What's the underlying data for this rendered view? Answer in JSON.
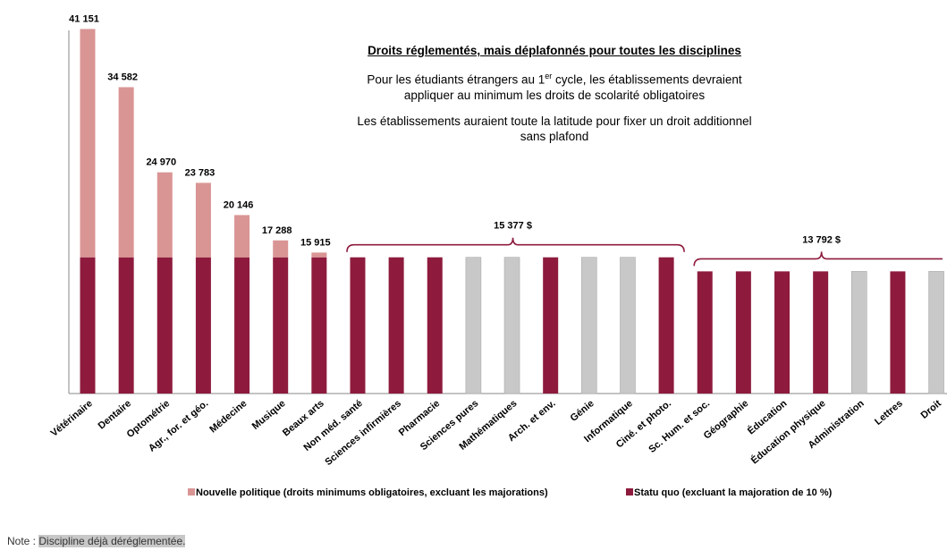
{
  "chart_data": {
    "type": "stacked_bar",
    "title": "Droits réglementés, mais déplafonnés pour toutes les disciplines",
    "text_lines": [
      [
        "Pour les étudiants étrangers au 1",
        "er",
        " cycle, les établissements devraient"
      ],
      [
        "appliquer au minimum les droits de scolarité obligatoires"
      ],
      [
        "Les établissements auraient toute la latitude pour fixer un droit additionnel"
      ],
      [
        "sans plafond"
      ]
    ],
    "categories": [
      "Vétérinaire",
      "Dentaire",
      "Optométrie",
      "Agr., for. et géo.",
      "Médecine",
      "Musique",
      "Beaux arts",
      "Non méd. santé",
      "Sciences infirmières",
      "Pharmacie",
      "Sciences pures",
      "Mathématiques",
      "Arch. et env.",
      "Génie",
      "Informatique",
      "Ciné. et photo.",
      "Sc. Hum. et soc.",
      "Géographie",
      "Éducation",
      "Éducation physique",
      "Administration",
      "Lettres",
      "Droit"
    ],
    "series": [
      {
        "name": "Statu quo (excluant la majoration de 10 %)",
        "color": "#8e1b3d",
        "point_colors": [
          "#8e1b3d",
          "#8e1b3d",
          "#8e1b3d",
          "#8e1b3d",
          "#8e1b3d",
          "#8e1b3d",
          "#8e1b3d",
          "#8e1b3d",
          "#8e1b3d",
          "#8e1b3d",
          "#c8c8c8",
          "#c8c8c8",
          "#8e1b3d",
          "#c8c8c8",
          "#c8c8c8",
          "#8e1b3d",
          "#8e1b3d",
          "#8e1b3d",
          "#8e1b3d",
          "#8e1b3d",
          "#c8c8c8",
          "#8e1b3d",
          "#c8c8c8"
        ],
        "values": [
          15377,
          15377,
          15377,
          15377,
          15377,
          15377,
          15377,
          15377,
          15377,
          15377,
          15377,
          15377,
          15377,
          15377,
          15377,
          15377,
          13792,
          13792,
          13792,
          13792,
          13792,
          13792,
          13792
        ]
      },
      {
        "name": "Nouvelle politique (droits minimums obligatoires, excluant les majorations)",
        "color": "#d99594",
        "values": [
          25774,
          19205,
          9593,
          8406,
          4769,
          1911,
          538,
          null,
          null,
          null,
          null,
          null,
          null,
          null,
          null,
          null,
          null,
          null,
          null,
          null,
          null,
          null,
          null
        ]
      }
    ],
    "totals": [
      41151,
      34582,
      24970,
      23783,
      20146,
      17288,
      15915,
      null,
      null,
      null,
      null,
      null,
      null,
      null,
      null,
      null,
      null,
      null,
      null,
      null,
      null,
      null,
      null
    ],
    "total_labels": [
      "41 151",
      "34 582",
      "24 970",
      "23 783",
      "20 146",
      "17 288",
      "15 915",
      null,
      null,
      null,
      null,
      null,
      null,
      null,
      null,
      null,
      null,
      null,
      null,
      null,
      null,
      null,
      null
    ],
    "brackets": [
      {
        "label": "15 377 $",
        "value": 15377,
        "from": "Non méd. santé",
        "to": "Ciné. et photo."
      },
      {
        "label": "13 792 $",
        "value": 13792,
        "from": "Sc. Hum. et soc.",
        "to": "Droit"
      }
    ],
    "ylim": [
      0,
      42000
    ],
    "note": "Note : ",
    "note_highlight": "Discipline déjà déréglementée.",
    "note_color": "#c8c8c8"
  }
}
